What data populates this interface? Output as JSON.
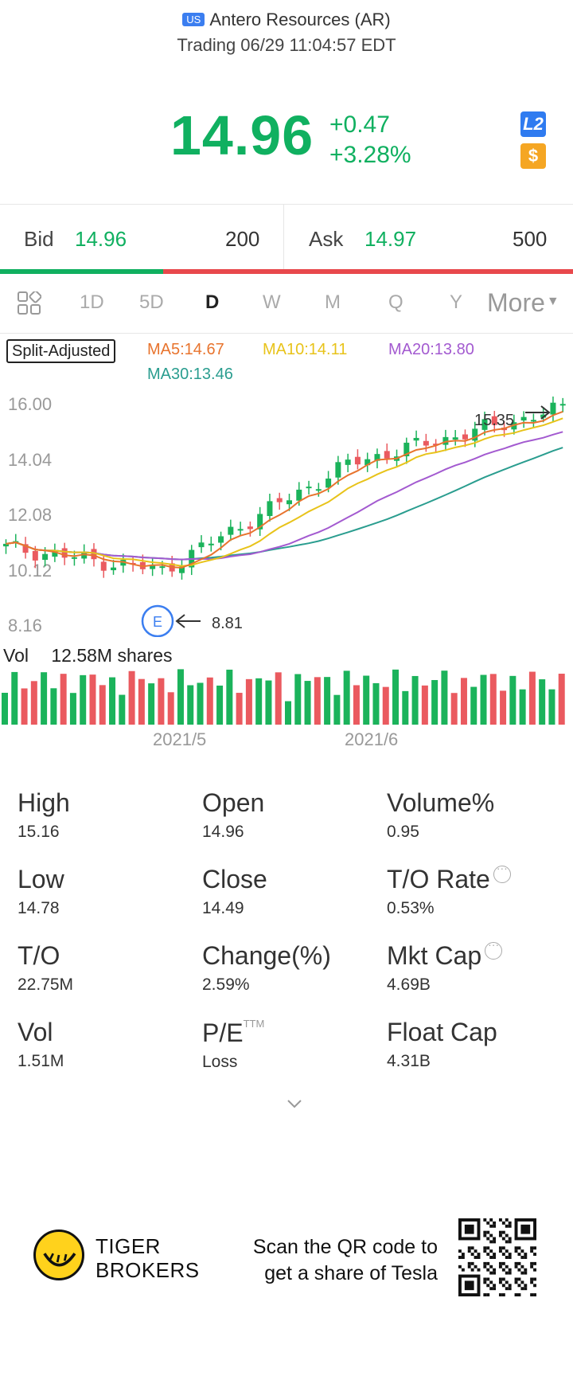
{
  "header": {
    "market": "US",
    "title": "Antero Resources (AR)",
    "status": "Trading 06/29 11:04:57 EDT"
  },
  "quote": {
    "price": "14.96",
    "change": "+0.47",
    "change_pct": "+3.28%",
    "l2_label": "L2",
    "currency_label": "$"
  },
  "bid_ask": {
    "bid_label": "Bid",
    "bid_price": "14.96",
    "bid_size": "200",
    "ask_label": "Ask",
    "ask_price": "14.97",
    "ask_size": "500",
    "bid_ratio": 0.285
  },
  "tabs": [
    "1D",
    "5D",
    "D",
    "W",
    "M",
    "Q",
    "Y"
  ],
  "active_tab": "D",
  "more_label": "More",
  "indicators": {
    "split_label": "Split-Adjusted",
    "ma5": "MA5:14.67",
    "ma10": "MA10:14.11",
    "ma20": "MA20:13.80",
    "ma30": "MA30:13.46",
    "colors": {
      "ma5": "#e8742e",
      "ma10": "#e8c31a",
      "ma20": "#a35ad0",
      "ma30": "#2a9d8f",
      "up": "#1bb35b",
      "down": "#ea5a5f"
    }
  },
  "chart_data": {
    "type": "candlestick",
    "price_ticks": [
      "16.00",
      "14.04",
      "12.08",
      "10.12",
      "8.16"
    ],
    "y_range": [
      8.16,
      16.0
    ],
    "high_marker": "15.35",
    "low_marker": "8.81",
    "event_marker": "E",
    "date_ticks": [
      "2021/5",
      "2021/6"
    ],
    "volume_label": "Vol",
    "volume_value": "12.58M shares"
  },
  "stats": [
    {
      "label": "High",
      "value": "15.16",
      "info": false
    },
    {
      "label": "Open",
      "value": "14.96",
      "info": false
    },
    {
      "label": "Volume%",
      "value": "0.95",
      "info": false
    },
    {
      "label": "Low",
      "value": "14.78",
      "info": false
    },
    {
      "label": "Close",
      "value": "14.49",
      "info": false
    },
    {
      "label": "T/O Rate",
      "value": "0.53%",
      "info": true
    },
    {
      "label": "T/O",
      "value": "22.75M",
      "info": false
    },
    {
      "label": "Change(%)",
      "value": "2.59%",
      "info": false
    },
    {
      "label": "Mkt Cap",
      "value": "4.69B",
      "info": true
    },
    {
      "label": "Vol",
      "value": "1.51M",
      "info": false
    },
    {
      "label": "P/E",
      "value": "Loss",
      "info": false,
      "sup": "TTM"
    },
    {
      "label": "Float Cap",
      "value": "4.31B",
      "info": false
    }
  ],
  "footer": {
    "brand_line1": "TIGER",
    "brand_line2": "BROKERS",
    "qr_line1": "Scan the QR code to",
    "qr_line2": "get a share of Tesla"
  }
}
